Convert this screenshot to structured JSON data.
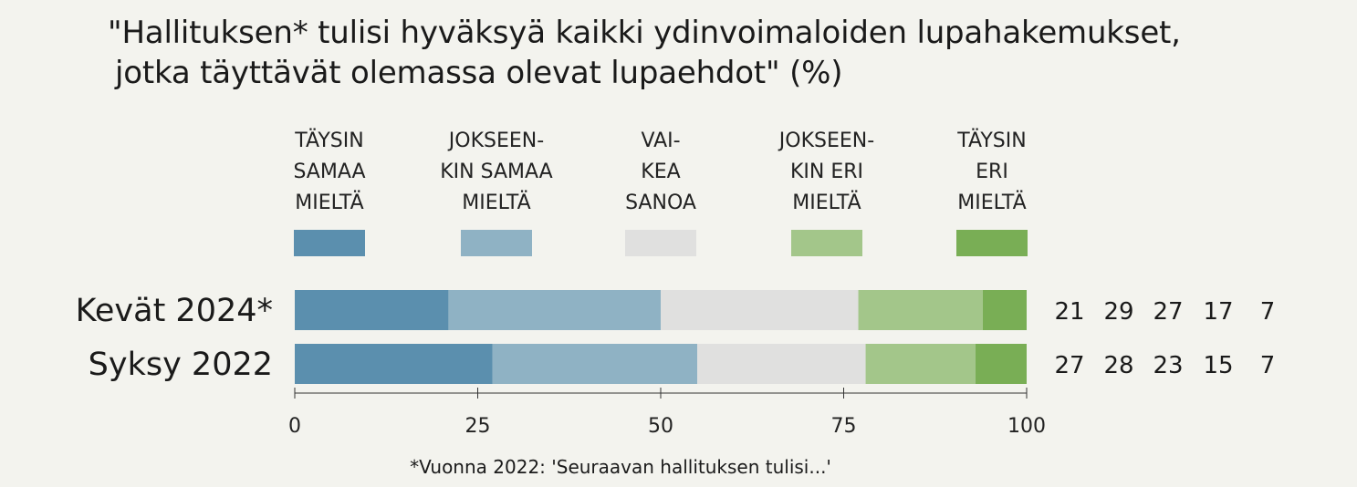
{
  "title_line1": "\"Hallituksen* tulisi hyväksyä kaikki ydinvoimaloiden lupahakemukset,",
  "title_line2": "jotka täyttävät olemassa olevat lupaehdot\" (%)",
  "footnote": "*Vuonna 2022: 'Seuraavan hallituksen tulisi...'",
  "chart_data": {
    "type": "bar",
    "orientation": "horizontal",
    "stacked": true,
    "title": "\"Hallituksen* tulisi hyväksyä kaikki ydinvoimaloiden lupahakemukset, jotka täyttävät olemassa olevat lupaehdot\" (%)",
    "categories": [
      "Kevät 2024*",
      "Syksy 2022"
    ],
    "series": [
      {
        "name": "TÄYSIN SAMAA MIELTÄ",
        "label_lines": [
          "TÄYSIN",
          "SAMAA",
          "MIELTÄ"
        ],
        "color": "#5b8fae",
        "values": [
          21,
          27
        ]
      },
      {
        "name": "JOKSEEN-KIN SAMAA MIELTÄ",
        "label_lines": [
          "JOKSEEN-",
          "KIN SAMAA",
          "MIELTÄ"
        ],
        "color": "#8fb2c4",
        "values": [
          29,
          28
        ]
      },
      {
        "name": "VAI-KEA SANOA",
        "label_lines": [
          "VAI-",
          "KEA",
          "SANOA"
        ],
        "color": "#e0e0df",
        "values": [
          27,
          23
        ]
      },
      {
        "name": "JOKSEEN-KIN ERI MIELTÄ",
        "label_lines": [
          "JOKSEEN-",
          "KIN ERI",
          "MIELTÄ"
        ],
        "color": "#a3c68a",
        "values": [
          17,
          15
        ]
      },
      {
        "name": "TÄYSIN ERI MIELTÄ",
        "label_lines": [
          "TÄYSIN",
          "ERI",
          "MIELTÄ"
        ],
        "color": "#79ae55",
        "values": [
          7,
          7
        ]
      }
    ],
    "value_labels": [
      [
        "21",
        "29",
        "27",
        "17",
        "7"
      ],
      [
        "27",
        "28",
        "23",
        "15",
        "7"
      ]
    ],
    "xlim": [
      0,
      100
    ],
    "xticks": [
      0,
      25,
      50,
      75,
      100
    ],
    "xlabel": "",
    "ylabel": "",
    "grid": false,
    "legend_position": "top"
  }
}
